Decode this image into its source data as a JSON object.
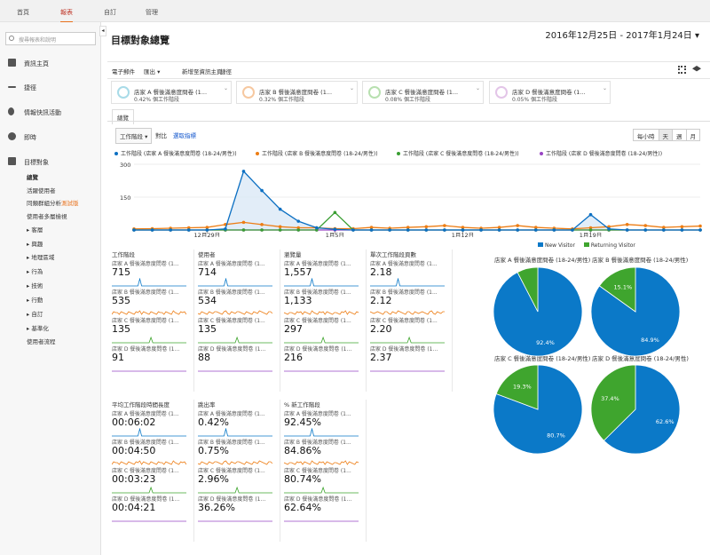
{
  "top_nav": {
    "home": "首頁",
    "reports": "報表",
    "custom": "自訂",
    "admin": "管理"
  },
  "sidebar": {
    "search_placeholder": "搜尋報表和說明",
    "home": "資訊主頁",
    "shortcuts": "捷徑",
    "intelligence": "情報快訊活動",
    "realtime": "即時",
    "audience": "目標對象",
    "sub": {
      "overview": "總覽",
      "active_users": "活躍使用者",
      "cohort": "同類群組分析",
      "cohort_beta": "測試版",
      "user_explorer": "使用者多層檢視",
      "demographics": "▸ 客層",
      "interests": "▸ 興趣",
      "geo": "▸ 地理區域",
      "behavior": "▸ 行為",
      "technology": "▸ 技術",
      "mobile": "▸ 行動",
      "custom": "▸ 自訂",
      "benchmarking": "▸ 基準化",
      "users_flow": "使用者流程"
    }
  },
  "header": {
    "title": "目標對象總覽",
    "date_range": "2016年12月25日 - 2017年1月24日 ▾"
  },
  "toolbar": {
    "email": "電子郵件",
    "export": "匯出 ▾",
    "add_to_dashboard": "新增至資訊主頁",
    "shortcut": "捷徑"
  },
  "segments": [
    {
      "name": "店家 A 餐後滿意度問卷 (1...",
      "pct": "0.42% 個工作階段",
      "color": "#a8dbe8"
    },
    {
      "name": "店家 B 餐後滿意度問卷 (1...",
      "pct": "0.32% 個工作階段",
      "color": "#f6c8a0"
    },
    {
      "name": "店家 C 餐後滿意度問卷 (1...",
      "pct": "0.08% 個工作階段",
      "color": "#b8e0b0"
    },
    {
      "name": "店家 D 餐後滿意度問卷 (1...",
      "pct": "0.05% 個工作階段",
      "color": "#e3c5e8"
    }
  ],
  "tab": "總覽",
  "metric_dropdown": "工作階段 ▾",
  "vs": "對比",
  "select_metric": "選取指標",
  "granularity": [
    "每小時",
    "天",
    "週",
    "月"
  ],
  "legend": [
    {
      "label": "工作階段 (店家 A 餐後滿意度問卷 (18-24/男性))",
      "color": "#0b6fc2"
    },
    {
      "label": "工作階段 (店家 B 餐後滿意度問卷 (18-24/男性))",
      "color": "#ed7d14"
    },
    {
      "label": "工作階段 (店家 C 餐後滿意度問卷 (18-24/男性))",
      "color": "#3a9e33"
    },
    {
      "label": "工作階段 (店家 D 餐後滿意度問卷 (18-24/男性))",
      "color": "#9945c4"
    }
  ],
  "chart_data": [
    {
      "type": "line",
      "y_ticks": [
        "300",
        "150"
      ],
      "ylim": [
        0,
        300
      ],
      "x_tick_labels": [
        "12月29日",
        "1月5日",
        "1月12日",
        "1月19日"
      ],
      "x_tick_index": [
        4,
        11,
        18,
        25
      ],
      "series": [
        {
          "name": "工作階段 (店家 A 餐後滿意度問卷 (18-24/男性))",
          "color": "#0b6fc2",
          "values": [
            0,
            0,
            0,
            0,
            0,
            5,
            268,
            180,
            95,
            40,
            10,
            3,
            0,
            0,
            0,
            0,
            0,
            0,
            0,
            0,
            0,
            0,
            0,
            0,
            0,
            70,
            5,
            0,
            0,
            0,
            0,
            0
          ]
        },
        {
          "name": "工作階段 (店家 B 餐後滿意度問卷 (18-24/男性))",
          "color": "#ed7d14",
          "values": [
            5,
            6,
            8,
            10,
            12,
            25,
            35,
            25,
            15,
            10,
            10,
            6,
            6,
            12,
            8,
            12,
            15,
            20,
            12,
            8,
            12,
            20,
            12,
            8,
            5,
            10,
            15,
            25,
            20,
            12,
            15,
            18
          ]
        },
        {
          "name": "工作階段 (店家 C 餐後滿意度問卷 (18-24/男性))",
          "color": "#3a9e33",
          "values": [
            0,
            0,
            0,
            0,
            0,
            0,
            0,
            0,
            0,
            0,
            0,
            80,
            0,
            0,
            0,
            0,
            0,
            0,
            0,
            0,
            0,
            0,
            0,
            0,
            0,
            0,
            0,
            0,
            0,
            0,
            0,
            0
          ]
        },
        {
          "name": "工作階段 (店家 D 餐後滿意度問卷 (18-24/男性))",
          "color": "#9945c4",
          "values": [
            0,
            0,
            0,
            0,
            0,
            0,
            0,
            0,
            0,
            0,
            0,
            0,
            0,
            0,
            0,
            0,
            0,
            0,
            0,
            0,
            0,
            0,
            0,
            0,
            0,
            0,
            0,
            0,
            0,
            0,
            0,
            0
          ]
        }
      ]
    },
    {
      "type": "pie",
      "legend": [
        "New Visitor",
        "Returning Visitor"
      ],
      "colors": [
        "#0b79c8",
        "#3fa52e"
      ],
      "pies": [
        {
          "title": "店家 A 餐後滿意度問卷 (18-24/男性)",
          "values": [
            92.4,
            7.6
          ],
          "labels": [
            "92.4%",
            ""
          ]
        },
        {
          "title": "店家 B 餐後滿意度問卷 (18-24/男性)",
          "values": [
            84.9,
            15.1
          ],
          "labels": [
            "84.9%",
            "15.1%"
          ]
        },
        {
          "title": "店家 C 餐後滿意度問卷 (18-24/男性)",
          "values": [
            80.7,
            19.3
          ],
          "labels": [
            "80.7%",
            "19.3%"
          ]
        },
        {
          "title": "店家 D 餐後滿意度問卷 (18-24/男性)",
          "values": [
            62.6,
            37.4
          ],
          "labels": [
            "62.6%",
            "37.4%"
          ]
        }
      ]
    }
  ],
  "metrics": [
    {
      "title": "工作階段",
      "values": [
        "715",
        "535",
        "135",
        "91"
      ]
    },
    {
      "title": "使用者",
      "values": [
        "714",
        "534",
        "135",
        "88"
      ]
    },
    {
      "title": "瀏覽量",
      "values": [
        "1,557",
        "1,133",
        "297",
        "216"
      ]
    },
    {
      "title": "單次工作階段頁數",
      "values": [
        "2.18",
        "2.12",
        "2.20",
        "2.37"
      ]
    },
    {
      "title": "平均工作階段時間長度",
      "values": [
        "00:06:02",
        "00:04:50",
        "00:03:23",
        "00:04:21"
      ]
    },
    {
      "title": "跳出率",
      "values": [
        "0.42%",
        "0.75%",
        "2.96%",
        "36.26%"
      ]
    },
    {
      "title": "% 新工作階段",
      "values": [
        "92.45%",
        "84.86%",
        "80.74%",
        "62.64%"
      ]
    }
  ],
  "metric_segments": [
    "店家 A 餐後滿意度問卷 (1...",
    "店家 B 餐後滿意度問卷 (1...",
    "店家 C 餐後滿意度問卷 (1...",
    "店家 D 餐後滿意度問卷 (1..."
  ]
}
